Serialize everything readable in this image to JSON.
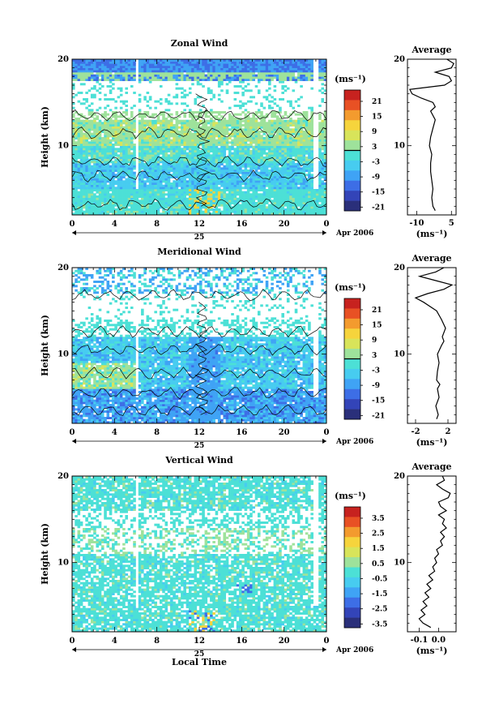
{
  "colors": {
    "palette": [
      "#2a2f7a",
      "#3344b8",
      "#3d6ee6",
      "#3fa3f5",
      "#47ccf0",
      "#4ce0d6",
      "#9ee29b",
      "#d8e45a",
      "#f6d43c",
      "#f39b2e",
      "#e85124",
      "#c7221f"
    ]
  },
  "chart_data": [
    {
      "type": "heatmap",
      "title": "Zonal Wind",
      "ylabel": "Height (km)",
      "xlabel": "",
      "ylim": [
        2,
        20
      ],
      "xlim": [
        0,
        24
      ],
      "y_ticks": [
        "10",
        "20"
      ],
      "x_ticks": [
        "0",
        "4",
        "8",
        "12",
        "16",
        "20",
        "0"
      ],
      "date_day": "25",
      "date_label": "Apr 2006",
      "colorbar": {
        "unit": "(ms⁻¹)",
        "range": [
          -24,
          24
        ],
        "ticks": [
          "21",
          "15",
          "9",
          "3",
          "-3",
          "-9",
          "-15",
          "-21"
        ],
        "zero_line": true
      },
      "profile": {
        "title": "Average",
        "unit": "(ms⁻¹)",
        "xlim": [
          -14,
          7
        ],
        "x_ticks": [
          "-10",
          "5"
        ],
        "y_ticks": [
          "10",
          "20"
        ],
        "heights": [
          2.5,
          3,
          4,
          5,
          6,
          7,
          8,
          9,
          10,
          11,
          12,
          13,
          14,
          14.5,
          15,
          15.5,
          16,
          16.5,
          17,
          17.5,
          18,
          18.5,
          19,
          19.5,
          20
        ],
        "values": [
          -2,
          -3,
          -3.5,
          -3,
          -3.5,
          -4,
          -4,
          -3.5,
          -4.5,
          -4,
          -3,
          -2,
          -4,
          -2,
          -3,
          -8,
          -12,
          -13,
          2,
          5,
          4,
          -2,
          5,
          6,
          3
        ]
      }
    },
    {
      "type": "heatmap",
      "title": "Meridional Wind",
      "ylabel": "Height (km)",
      "xlabel": "",
      "ylim": [
        2,
        20
      ],
      "xlim": [
        0,
        24
      ],
      "y_ticks": [
        "10",
        "20"
      ],
      "x_ticks": [
        "0",
        "4",
        "8",
        "12",
        "16",
        "20",
        "0"
      ],
      "date_day": "25",
      "date_label": "Apr 2006",
      "colorbar": {
        "unit": "(ms⁻¹)",
        "range": [
          -24,
          24
        ],
        "ticks": [
          "21",
          "15",
          "9",
          "3",
          "-3",
          "-9",
          "-15",
          "-21"
        ],
        "zero_line": true
      },
      "profile": {
        "title": "Average",
        "unit": "(ms⁻¹)",
        "xlim": [
          -3,
          3
        ],
        "x_ticks": [
          "-2",
          "2"
        ],
        "y_ticks": [
          "10",
          "20"
        ],
        "heights": [
          2.5,
          3,
          4,
          5,
          6,
          6.5,
          7,
          8,
          9,
          10,
          11,
          11.5,
          12,
          13,
          14,
          15,
          16,
          16.5,
          17,
          17.5,
          18,
          18.5,
          19,
          19.5,
          20
        ],
        "values": [
          0.6,
          0.8,
          0.5,
          0.9,
          0.7,
          1.0,
          0.6,
          0.7,
          0.9,
          0.7,
          1.2,
          1.5,
          1.3,
          1.7,
          1.2,
          0.6,
          -1.0,
          -2.0,
          -0.5,
          1.5,
          2.5,
          0.5,
          -1.5,
          0.5,
          1.5
        ]
      }
    },
    {
      "type": "heatmap",
      "title": "Vertical Wind",
      "ylabel": "Height (km)",
      "xlabel": "Local Time",
      "ylim": [
        2,
        20
      ],
      "xlim": [
        0,
        24
      ],
      "y_ticks": [
        "10",
        "20"
      ],
      "x_ticks": [
        "0",
        "4",
        "8",
        "12",
        "16",
        "20",
        "0"
      ],
      "date_day": "25",
      "date_label": "Apr 2006",
      "colorbar": {
        "unit": "(ms⁻¹)",
        "range": [
          -4,
          4
        ],
        "ticks": [
          "3.5",
          "2.5",
          "1.5",
          "0.5",
          "-0.5",
          "-1.5",
          "-2.5",
          "-3.5"
        ],
        "zero_line": false
      },
      "profile": {
        "title": "Average",
        "unit": "(ms⁻¹)",
        "xlim": [
          -0.16,
          0.09
        ],
        "x_ticks": [
          "-0.1",
          "0.0"
        ],
        "y_ticks": [
          "10",
          "20"
        ],
        "heights": [
          2.5,
          3,
          3.5,
          4,
          4.5,
          5,
          5.5,
          6,
          6.5,
          7,
          7.5,
          8,
          8.5,
          9,
          9.5,
          10,
          10.5,
          11,
          11.5,
          12,
          12.5,
          13,
          13.5,
          14,
          14.5,
          15,
          15.5,
          16,
          16.5,
          17,
          17.5,
          18,
          18.5,
          19,
          19.5,
          20
        ],
        "values": [
          -0.04,
          -0.08,
          -0.1,
          -0.07,
          -0.09,
          -0.06,
          -0.08,
          -0.05,
          -0.07,
          -0.04,
          -0.06,
          -0.03,
          -0.05,
          -0.02,
          -0.03,
          -0.01,
          -0.02,
          0.0,
          -0.01,
          0.02,
          0.01,
          0.03,
          0.01,
          0.04,
          0.02,
          0.03,
          0.0,
          0.04,
          0.01,
          0.0,
          0.05,
          0.06,
          0.02,
          -0.01,
          0.03,
          0.02
        ]
      }
    }
  ]
}
